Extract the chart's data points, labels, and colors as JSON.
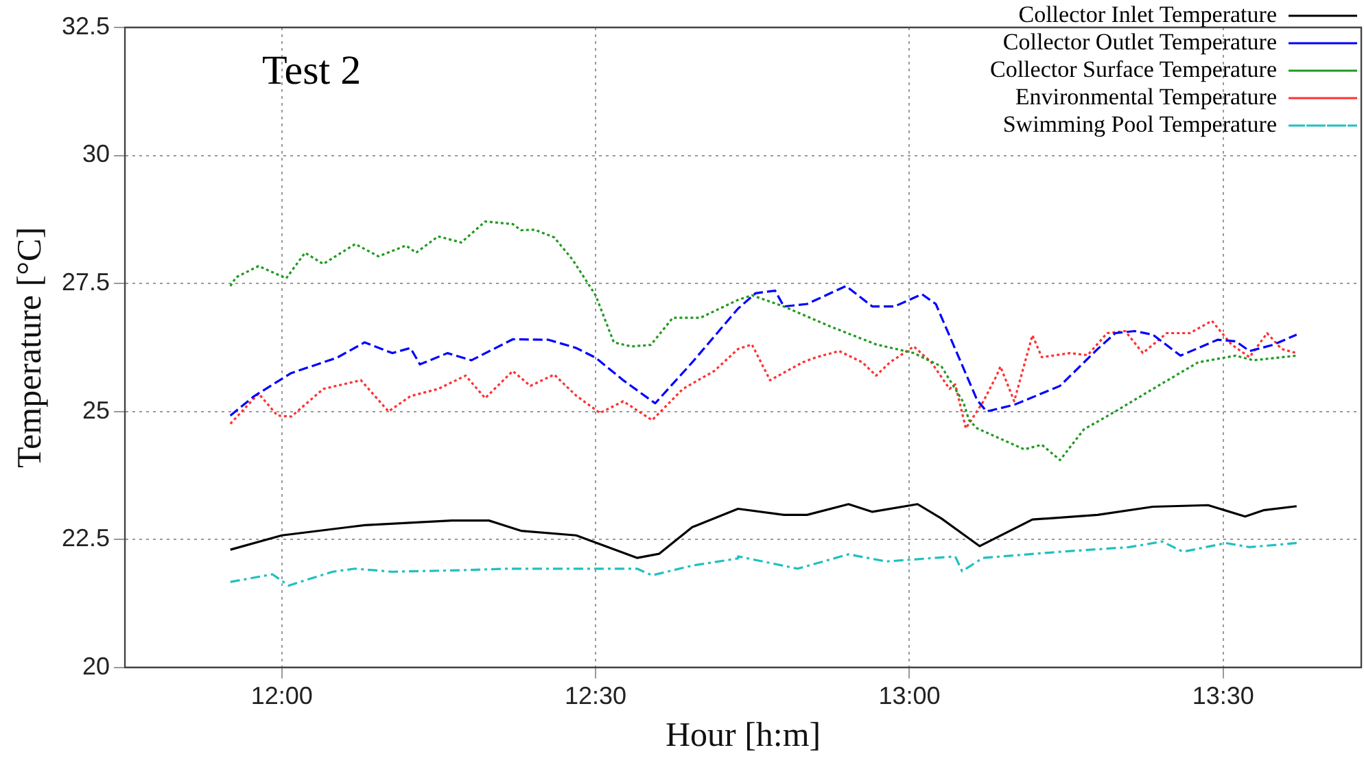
{
  "chart_data": {
    "type": "line",
    "title": "Test 2",
    "xlabel": "Hour [h:m]",
    "ylabel": "Temperature [°C]",
    "xlim": [
      11.75,
      13.72
    ],
    "xticks": [
      {
        "value": 12,
        "label": "12:00"
      },
      {
        "value": 12.5,
        "label": "12:30"
      },
      {
        "value": 13,
        "label": "13:00"
      },
      {
        "value": 13.5,
        "label": "13:30"
      }
    ],
    "ylim": [
      20,
      32.5
    ],
    "yticks": [
      20,
      22.5,
      25,
      27.5,
      30,
      32.5
    ],
    "grid": true,
    "legend": "top right",
    "marker": "none",
    "series": [
      {
        "name": "Collector Inlet Temperature",
        "color": "#000000",
        "line_style": "solid",
        "x": [
          11.918,
          12.0,
          12.132,
          12.271,
          12.33,
          12.381,
          12.469,
          12.566,
          12.601,
          12.654,
          12.727,
          12.8,
          12.837,
          12.903,
          12.941,
          13.013,
          13.051,
          13.112,
          13.196,
          13.3,
          13.388,
          13.476,
          13.535,
          13.564,
          13.617
        ],
        "values": [
          22.3,
          22.58,
          22.78,
          22.87,
          22.87,
          22.67,
          22.58,
          22.14,
          22.22,
          22.74,
          23.1,
          22.98,
          22.98,
          23.19,
          23.04,
          23.19,
          22.91,
          22.37,
          22.89,
          22.98,
          23.14,
          23.17,
          22.95,
          23.07,
          23.15
        ]
      },
      {
        "name": "Collector Outlet Temperature",
        "color": "#0000ff",
        "line_style": "dashed",
        "x": [
          11.918,
          11.956,
          12.015,
          12.088,
          12.132,
          12.176,
          12.205,
          12.22,
          12.264,
          12.302,
          12.368,
          12.425,
          12.469,
          12.5,
          12.544,
          12.588,
          12.595,
          12.654,
          12.727,
          12.755,
          12.786,
          12.8,
          12.837,
          12.899,
          12.941,
          12.976,
          13.02,
          13.042,
          13.073,
          13.108,
          13.123,
          13.167,
          13.24,
          13.3,
          13.328,
          13.359,
          13.388,
          13.432,
          13.491,
          13.52,
          13.542,
          13.579,
          13.617
        ],
        "values": [
          24.92,
          25.3,
          25.75,
          26.05,
          26.35,
          26.14,
          26.24,
          25.92,
          26.14,
          26.0,
          26.41,
          26.4,
          26.24,
          26.05,
          25.61,
          25.22,
          25.16,
          25.96,
          27.01,
          27.31,
          27.36,
          27.05,
          27.1,
          27.45,
          27.05,
          27.05,
          27.29,
          27.1,
          26.22,
          25.22,
          25.0,
          25.13,
          25.5,
          26.22,
          26.53,
          26.57,
          26.5,
          26.09,
          26.4,
          26.37,
          26.18,
          26.3,
          26.5
        ]
      },
      {
        "name": "Collector Surface Temperature",
        "color": "#1f9a1f",
        "line_style": "dotted",
        "x": [
          11.918,
          11.927,
          11.963,
          12.007,
          12.037,
          12.066,
          12.117,
          12.154,
          12.198,
          12.214,
          12.249,
          12.286,
          12.324,
          12.368,
          12.381,
          12.403,
          12.434,
          12.463,
          12.5,
          12.529,
          12.557,
          12.588,
          12.623,
          12.667,
          12.727,
          12.749,
          12.8,
          12.874,
          12.947,
          13.007,
          13.051,
          13.086,
          13.095,
          13.108,
          13.183,
          13.211,
          13.24,
          13.278,
          13.328,
          13.388,
          13.46,
          13.52,
          13.548,
          13.617
        ],
        "values": [
          27.45,
          27.62,
          27.84,
          27.6,
          28.1,
          27.88,
          28.27,
          28.03,
          28.24,
          28.1,
          28.42,
          28.3,
          28.71,
          28.66,
          28.54,
          28.55,
          28.4,
          27.97,
          27.27,
          26.35,
          26.27,
          26.3,
          26.83,
          26.83,
          27.18,
          27.27,
          27.05,
          26.66,
          26.31,
          26.14,
          25.88,
          25.18,
          24.83,
          24.67,
          24.26,
          24.35,
          24.05,
          24.65,
          25.0,
          25.44,
          25.96,
          26.09,
          26.0,
          26.09
        ]
      },
      {
        "name": "Environmental Temperature",
        "color": "#ff3030",
        "line_style": "dotted",
        "x": [
          11.918,
          11.963,
          11.993,
          12.015,
          12.066,
          12.126,
          12.17,
          12.205,
          12.249,
          12.293,
          12.324,
          12.368,
          12.396,
          12.434,
          12.469,
          12.507,
          12.544,
          12.59,
          12.639,
          12.689,
          12.727,
          12.749,
          12.778,
          12.83,
          12.852,
          12.888,
          12.925,
          12.947,
          12.969,
          13.007,
          13.035,
          13.064,
          13.073,
          13.09,
          13.117,
          13.139,
          13.145,
          13.167,
          13.196,
          13.211,
          13.256,
          13.284,
          13.315,
          13.344,
          13.372,
          13.41,
          13.447,
          13.482,
          13.513,
          13.542,
          13.57,
          13.593,
          13.617
        ],
        "values": [
          24.76,
          25.35,
          24.92,
          24.9,
          25.44,
          25.61,
          25.0,
          25.3,
          25.44,
          25.7,
          25.26,
          25.79,
          25.5,
          25.72,
          25.31,
          24.97,
          25.2,
          24.83,
          25.44,
          25.79,
          26.22,
          26.31,
          25.61,
          25.96,
          26.06,
          26.18,
          25.96,
          25.7,
          25.96,
          26.27,
          25.96,
          25.44,
          25.53,
          24.67,
          25.18,
          25.7,
          25.88,
          25.2,
          26.49,
          26.06,
          26.14,
          26.1,
          26.53,
          26.57,
          26.14,
          26.53,
          26.53,
          26.77,
          26.31,
          26.06,
          26.53,
          26.22,
          26.14
        ]
      },
      {
        "name": "Swimming Pool Temperature",
        "color": "#20c0c0",
        "line_style": "dashdot",
        "x": [
          11.918,
          11.985,
          12.011,
          12.044,
          12.081,
          12.117,
          12.176,
          12.286,
          12.359,
          12.469,
          12.566,
          12.59,
          12.654,
          12.727,
          12.727,
          12.822,
          12.903,
          12.963,
          13.073,
          13.084,
          13.117,
          13.24,
          13.35,
          13.403,
          13.436,
          13.504,
          13.542,
          13.617
        ],
        "values": [
          21.67,
          21.82,
          21.6,
          21.73,
          21.87,
          21.93,
          21.87,
          21.9,
          21.93,
          21.93,
          21.93,
          21.8,
          21.99,
          22.13,
          22.17,
          21.93,
          22.21,
          22.07,
          22.17,
          21.88,
          22.14,
          22.26,
          22.35,
          22.46,
          22.26,
          22.43,
          22.35,
          22.43
        ]
      }
    ]
  }
}
